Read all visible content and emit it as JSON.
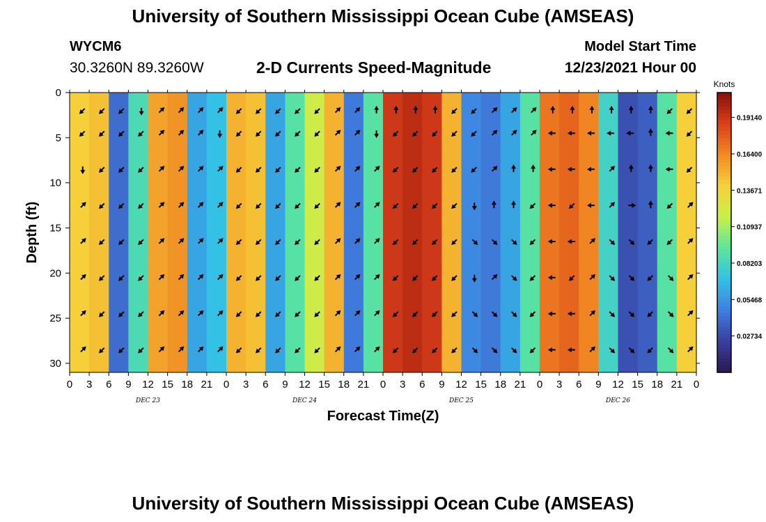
{
  "titles": {
    "main": "University of Southern Mississippi Ocean Cube (AMSEAS)",
    "repeat": "University of Southern Mississippi Ocean Cube (AMSEAS)"
  },
  "header": {
    "station": "WYCM6",
    "coords": "30.3260N  89.3260W",
    "subtitle": "2-D Currents Speed-Magnitude",
    "model_label": "Model Start Time",
    "model_date": "12/23/2021 Hour 00"
  },
  "chart_data": {
    "type": "heatmap",
    "title": "2-D Currents Speed-Magnitude",
    "xlabel": "Forecast Time(Z)",
    "ylabel": "Depth (ft)",
    "xlim": [
      0,
      96
    ],
    "ylim": [
      31,
      0
    ],
    "x_ticks": [
      "0",
      "3",
      "6",
      "9",
      "12",
      "15",
      "18",
      "21",
      "0",
      "3",
      "6",
      "9",
      "12",
      "15",
      "18",
      "21",
      "0",
      "3",
      "6",
      "9",
      "12",
      "15",
      "18",
      "21",
      "0",
      "3",
      "6",
      "9",
      "12",
      "15",
      "18",
      "21",
      "0"
    ],
    "y_ticks": [
      0,
      5,
      10,
      15,
      20,
      25,
      30
    ],
    "day_labels": [
      {
        "label": "DEC 23",
        "hour": 12
      },
      {
        "label": "DEC 24",
        "hour": 36
      },
      {
        "label": "DEC 25",
        "hour": 60
      },
      {
        "label": "DEC 26",
        "hour": 84
      }
    ],
    "colorbar": {
      "unit": "Knots",
      "min": 0.0,
      "max": 0.21,
      "ticks": [
        "0.19140",
        "0.16400",
        "0.13671",
        "0.10937",
        "0.08203",
        "0.05468",
        "0.02734"
      ],
      "colors": [
        "#2a1850",
        "#3a3fa0",
        "#3f7fe0",
        "#33c1e6",
        "#5de69a",
        "#c8f04a",
        "#f5d03a",
        "#f28a22",
        "#d8401a",
        "#8a0f0a"
      ]
    },
    "depths": [
      2,
      4.5,
      8.5,
      12.5,
      16.5,
      20.5,
      24.5,
      28.5
    ],
    "hours": [
      2,
      5,
      8,
      11,
      14,
      17,
      20,
      23,
      26,
      29,
      32,
      35,
      38,
      41,
      44,
      47,
      50,
      53,
      56,
      59,
      62,
      65,
      68,
      71,
      74,
      77,
      80,
      83,
      86,
      89,
      92,
      95
    ],
    "column_speeds": [
      0.14,
      0.145,
      0.04,
      0.085,
      0.155,
      0.16,
      0.06,
      0.07,
      0.15,
      0.145,
      0.06,
      0.09,
      0.12,
      0.15,
      0.045,
      0.09,
      0.19,
      0.195,
      0.19,
      0.15,
      0.05,
      0.045,
      0.06,
      0.09,
      0.17,
      0.175,
      0.165,
      0.08,
      0.03,
      0.035,
      0.09,
      0.14
    ],
    "arrow_directions": [
      [
        225,
        225,
        270,
        45,
        45,
        45,
        45,
        45
      ],
      [
        225,
        225,
        225,
        225,
        225,
        225,
        225,
        225
      ],
      [
        225,
        225,
        225,
        225,
        225,
        225,
        225,
        225
      ],
      [
        270,
        225,
        225,
        225,
        225,
        225,
        225,
        225
      ],
      [
        45,
        45,
        45,
        45,
        45,
        45,
        45,
        45
      ],
      [
        45,
        45,
        45,
        45,
        45,
        45,
        45,
        45
      ],
      [
        45,
        45,
        45,
        45,
        45,
        45,
        45,
        45
      ],
      [
        45,
        270,
        45,
        45,
        45,
        45,
        45,
        45
      ],
      [
        225,
        225,
        225,
        225,
        225,
        225,
        225,
        225
      ],
      [
        225,
        225,
        225,
        225,
        225,
        225,
        225,
        225
      ],
      [
        225,
        225,
        225,
        225,
        225,
        225,
        225,
        225
      ],
      [
        225,
        225,
        225,
        225,
        225,
        225,
        225,
        225
      ],
      [
        225,
        225,
        225,
        225,
        225,
        225,
        225,
        225
      ],
      [
        45,
        45,
        45,
        45,
        45,
        45,
        45,
        45
      ],
      [
        45,
        45,
        45,
        45,
        45,
        45,
        45,
        45
      ],
      [
        90,
        270,
        45,
        45,
        45,
        45,
        45,
        45
      ],
      [
        90,
        225,
        225,
        225,
        225,
        225,
        225,
        225
      ],
      [
        90,
        225,
        225,
        225,
        225,
        225,
        225,
        225
      ],
      [
        90,
        225,
        225,
        225,
        225,
        225,
        225,
        225
      ],
      [
        225,
        225,
        225,
        225,
        225,
        225,
        225,
        225
      ],
      [
        225,
        225,
        225,
        270,
        315,
        270,
        315,
        315
      ],
      [
        45,
        45,
        45,
        90,
        315,
        45,
        315,
        315
      ],
      [
        45,
        45,
        90,
        90,
        315,
        315,
        315,
        315
      ],
      [
        45,
        45,
        90,
        225,
        225,
        225,
        225,
        225
      ],
      [
        90,
        180,
        180,
        180,
        180,
        180,
        180,
        180
      ],
      [
        90,
        180,
        180,
        225,
        180,
        225,
        180,
        180
      ],
      [
        90,
        180,
        180,
        180,
        45,
        45,
        45,
        45
      ],
      [
        90,
        180,
        45,
        45,
        315,
        315,
        315,
        315
      ],
      [
        90,
        180,
        90,
        0,
        315,
        315,
        315,
        315
      ],
      [
        90,
        90,
        90,
        90,
        225,
        225,
        225,
        225
      ],
      [
        225,
        180,
        180,
        225,
        225,
        315,
        315,
        315
      ],
      [
        225,
        225,
        225,
        45,
        45,
        45,
        45,
        45
      ]
    ]
  }
}
